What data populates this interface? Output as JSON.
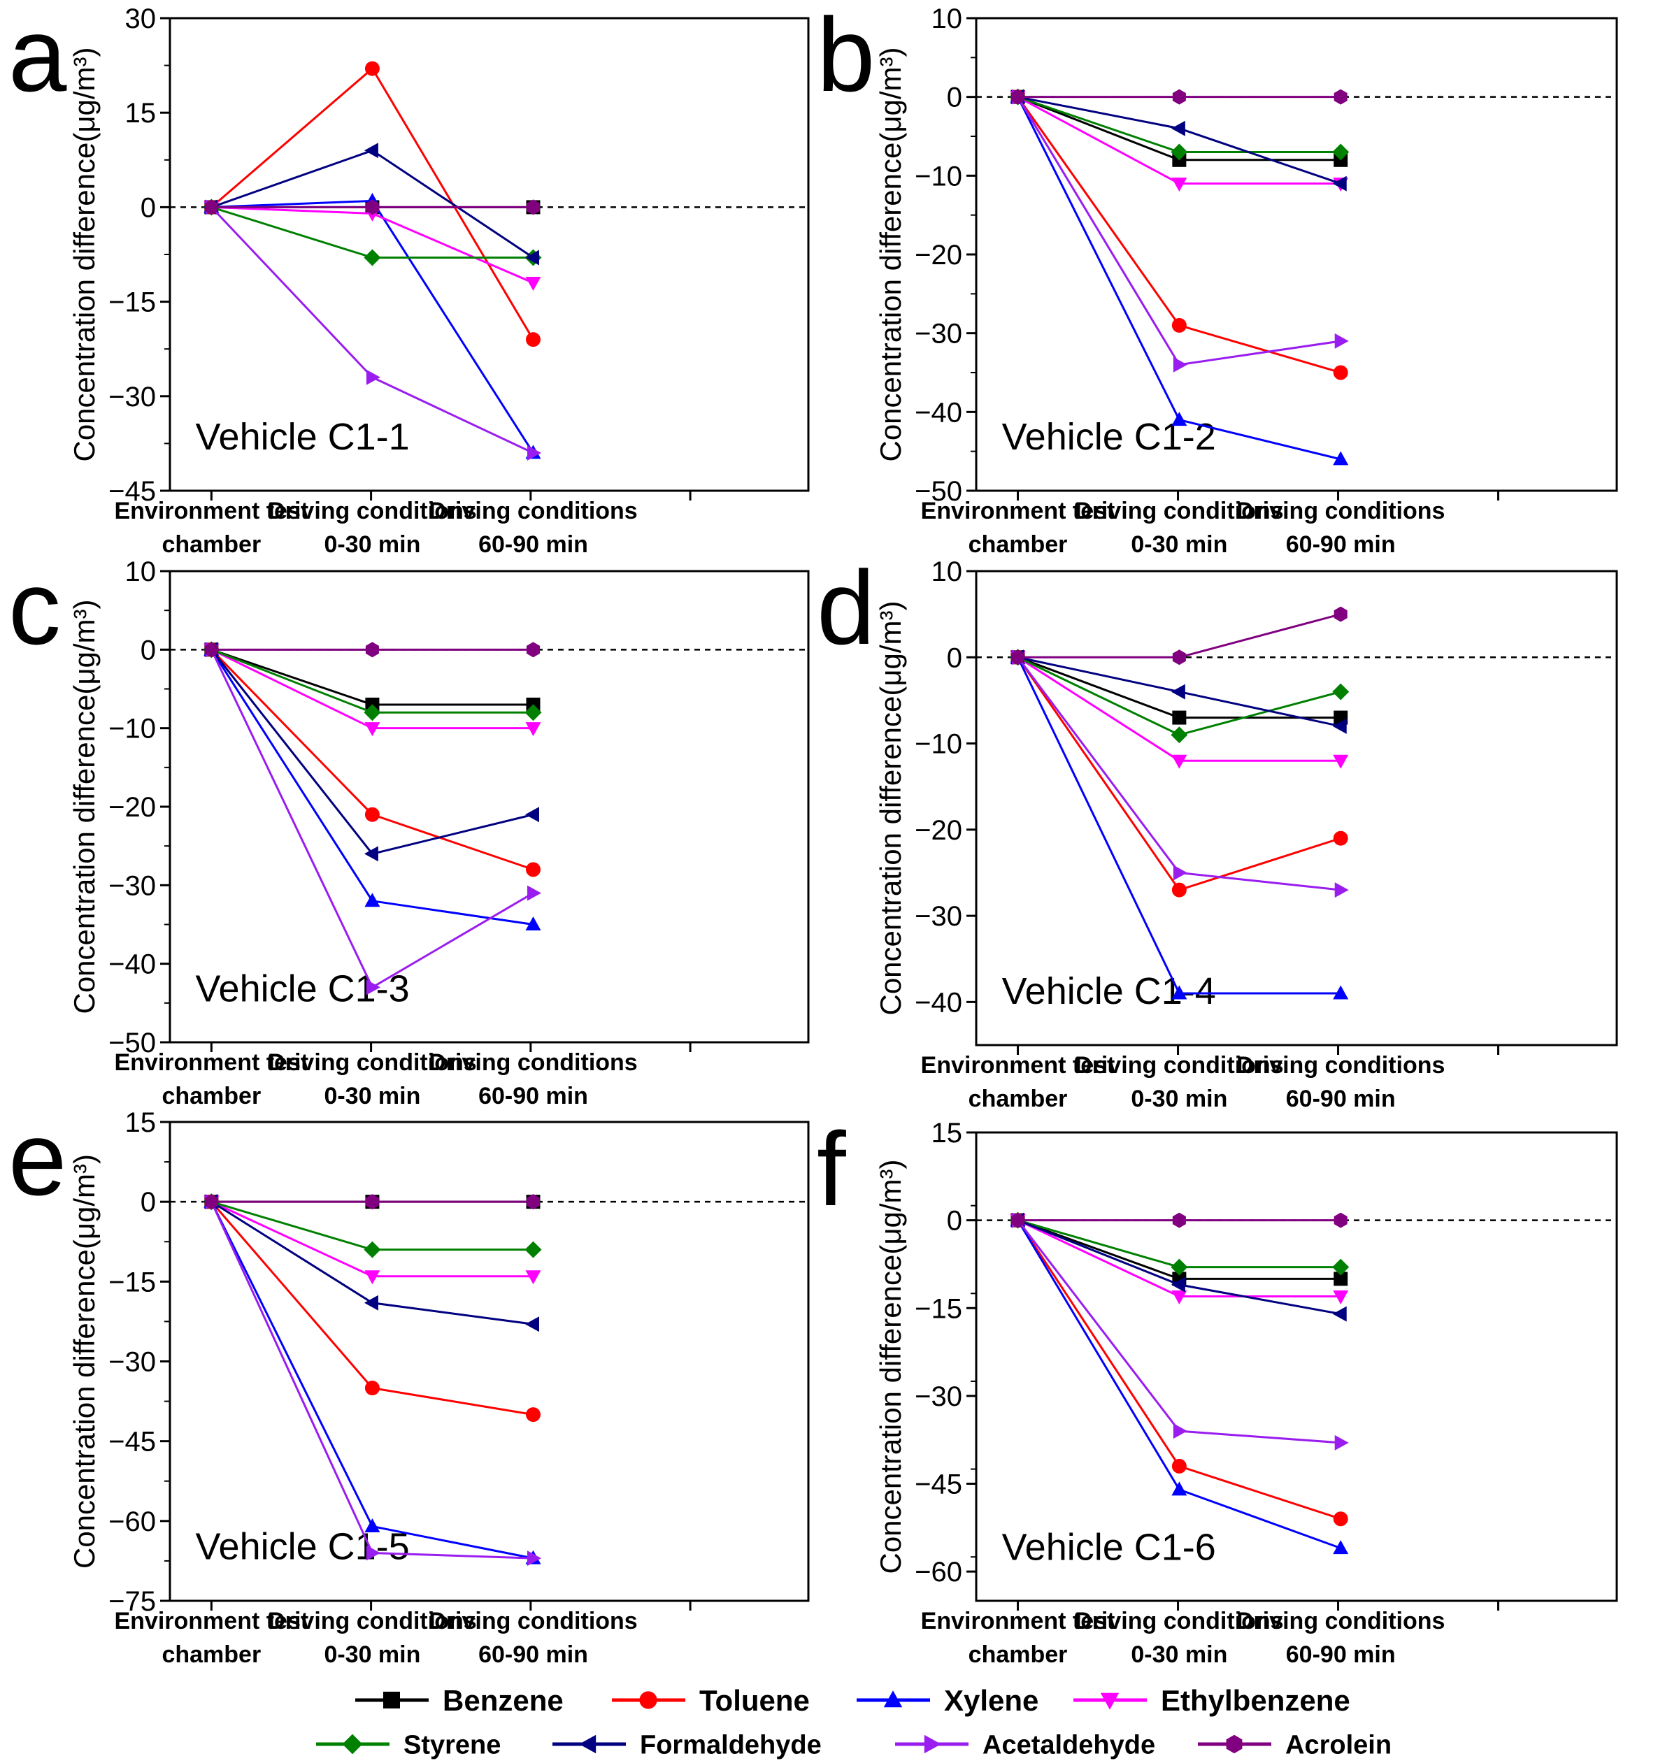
{
  "chart_data": {
    "type": "line",
    "ylabel": "Concentration difference(μg/m³)",
    "categories": [
      [
        "Environment test",
        "chamber"
      ],
      [
        "Driving conditions",
        "0-30 min"
      ],
      [
        "Driving conditions",
        "60-90 min"
      ]
    ],
    "legend": [
      {
        "name": "Benzene",
        "color": "#000000",
        "marker": "square"
      },
      {
        "name": "Toluene",
        "color": "#ff0000",
        "marker": "circle"
      },
      {
        "name": "Xylene",
        "color": "#0000ff",
        "marker": "triangle-up"
      },
      {
        "name": "Ethylbenzene",
        "color": "#ff00ff",
        "marker": "triangle-down"
      },
      {
        "name": "Styrene",
        "color": "#008000",
        "marker": "diamond"
      },
      {
        "name": "Formaldehyde",
        "color": "#000080",
        "marker": "triangle-left"
      },
      {
        "name": "Acetaldehyde",
        "color": "#9a1df0",
        "marker": "triangle-right"
      },
      {
        "name": "Acrolein",
        "color": "#800080",
        "marker": "hexagon"
      }
    ],
    "panels": [
      {
        "letter": "a",
        "vehicle": "Vehicle C1-1",
        "ylim": [
          -45,
          30
        ],
        "yticks": [
          30,
          15,
          0,
          -15,
          -30,
          -45
        ],
        "series": [
          {
            "name": "Benzene",
            "values": [
              0,
              0,
              0
            ]
          },
          {
            "name": "Toluene",
            "values": [
              0,
              22,
              -21
            ]
          },
          {
            "name": "Xylene",
            "values": [
              0,
              1,
              -39
            ]
          },
          {
            "name": "Ethylbenzene",
            "values": [
              0,
              -1,
              -12
            ]
          },
          {
            "name": "Styrene",
            "values": [
              0,
              -8,
              -8
            ]
          },
          {
            "name": "Formaldehyde",
            "values": [
              0,
              9,
              -8
            ]
          },
          {
            "name": "Acetaldehyde",
            "values": [
              0,
              -27,
              -39
            ]
          },
          {
            "name": "Acrolein",
            "values": [
              0,
              0,
              0
            ]
          }
        ]
      },
      {
        "letter": "b",
        "vehicle": "Vehicle C1-2",
        "ylim": [
          -50,
          10
        ],
        "yticks": [
          10,
          0,
          -10,
          -20,
          -30,
          -40,
          -50
        ],
        "series": [
          {
            "name": "Benzene",
            "values": [
              0,
              -8,
              -8
            ]
          },
          {
            "name": "Toluene",
            "values": [
              0,
              -29,
              -35
            ]
          },
          {
            "name": "Xylene",
            "values": [
              0,
              -41,
              -46
            ]
          },
          {
            "name": "Ethylbenzene",
            "values": [
              0,
              -11,
              -11
            ]
          },
          {
            "name": "Styrene",
            "values": [
              0,
              -7,
              -7
            ]
          },
          {
            "name": "Formaldehyde",
            "values": [
              0,
              -4,
              -11
            ]
          },
          {
            "name": "Acetaldehyde",
            "values": [
              0,
              -34,
              -31
            ]
          },
          {
            "name": "Acrolein",
            "values": [
              0,
              0,
              0
            ]
          }
        ]
      },
      {
        "letter": "c",
        "vehicle": "Vehicle C1-3",
        "ylim": [
          -50,
          10
        ],
        "yticks": [
          10,
          0,
          -10,
          -20,
          -30,
          -40,
          -50
        ],
        "series": [
          {
            "name": "Benzene",
            "values": [
              0,
              -7,
              -7
            ]
          },
          {
            "name": "Toluene",
            "values": [
              0,
              -21,
              -28
            ]
          },
          {
            "name": "Xylene",
            "values": [
              0,
              -32,
              -35
            ]
          },
          {
            "name": "Ethylbenzene",
            "values": [
              0,
              -10,
              -10
            ]
          },
          {
            "name": "Styrene",
            "values": [
              0,
              -8,
              -8
            ]
          },
          {
            "name": "Formaldehyde",
            "values": [
              0,
              -26,
              -21
            ]
          },
          {
            "name": "Acetaldehyde",
            "values": [
              0,
              -43,
              -31
            ]
          },
          {
            "name": "Acrolein",
            "values": [
              0,
              0,
              0
            ]
          }
        ]
      },
      {
        "letter": "d",
        "vehicle": "Vehicle C1-4",
        "ylim": [
          -45,
          10
        ],
        "yticks": [
          10,
          0,
          -10,
          -20,
          -30,
          -40
        ],
        "series": [
          {
            "name": "Benzene",
            "values": [
              0,
              -7,
              -7
            ]
          },
          {
            "name": "Toluene",
            "values": [
              0,
              -27,
              -21
            ]
          },
          {
            "name": "Xylene",
            "values": [
              0,
              -39,
              -39
            ]
          },
          {
            "name": "Ethylbenzene",
            "values": [
              0,
              -12,
              -12
            ]
          },
          {
            "name": "Styrene",
            "values": [
              0,
              -9,
              -4
            ]
          },
          {
            "name": "Formaldehyde",
            "values": [
              0,
              -4,
              -8
            ]
          },
          {
            "name": "Acetaldehyde",
            "values": [
              0,
              -25,
              -27
            ]
          },
          {
            "name": "Acrolein",
            "values": [
              0,
              0,
              5
            ]
          }
        ]
      },
      {
        "letter": "e",
        "vehicle": "Vehicle C1-5",
        "ylim": [
          -75,
          15
        ],
        "yticks": [
          15,
          0,
          -15,
          -30,
          -45,
          -60,
          -75
        ],
        "series": [
          {
            "name": "Benzene",
            "values": [
              0,
              0,
              0
            ]
          },
          {
            "name": "Toluene",
            "values": [
              0,
              -35,
              -40
            ]
          },
          {
            "name": "Xylene",
            "values": [
              0,
              -61,
              -67
            ]
          },
          {
            "name": "Ethylbenzene",
            "values": [
              0,
              -14,
              -14
            ]
          },
          {
            "name": "Styrene",
            "values": [
              0,
              -9,
              -9
            ]
          },
          {
            "name": "Formaldehyde",
            "values": [
              0,
              -19,
              -23
            ]
          },
          {
            "name": "Acetaldehyde",
            "values": [
              0,
              -66,
              -67
            ]
          },
          {
            "name": "Acrolein",
            "values": [
              0,
              0,
              0
            ]
          }
        ]
      },
      {
        "letter": "f",
        "vehicle": "Vehicle C1-6",
        "ylim": [
          -65,
          15
        ],
        "yticks": [
          15,
          0,
          -15,
          -30,
          -45,
          -60
        ],
        "series": [
          {
            "name": "Benzene",
            "values": [
              0,
              -10,
              -10
            ]
          },
          {
            "name": "Toluene",
            "values": [
              0,
              -42,
              -51
            ]
          },
          {
            "name": "Xylene",
            "values": [
              0,
              -46,
              -56
            ]
          },
          {
            "name": "Ethylbenzene",
            "values": [
              0,
              -13,
              -13
            ]
          },
          {
            "name": "Styrene",
            "values": [
              0,
              -8,
              -8
            ]
          },
          {
            "name": "Formaldehyde",
            "values": [
              0,
              -11,
              -16
            ]
          },
          {
            "name": "Acetaldehyde",
            "values": [
              0,
              -36,
              -38
            ]
          },
          {
            "name": "Acrolein",
            "values": [
              0,
              0,
              0
            ]
          }
        ]
      }
    ]
  }
}
